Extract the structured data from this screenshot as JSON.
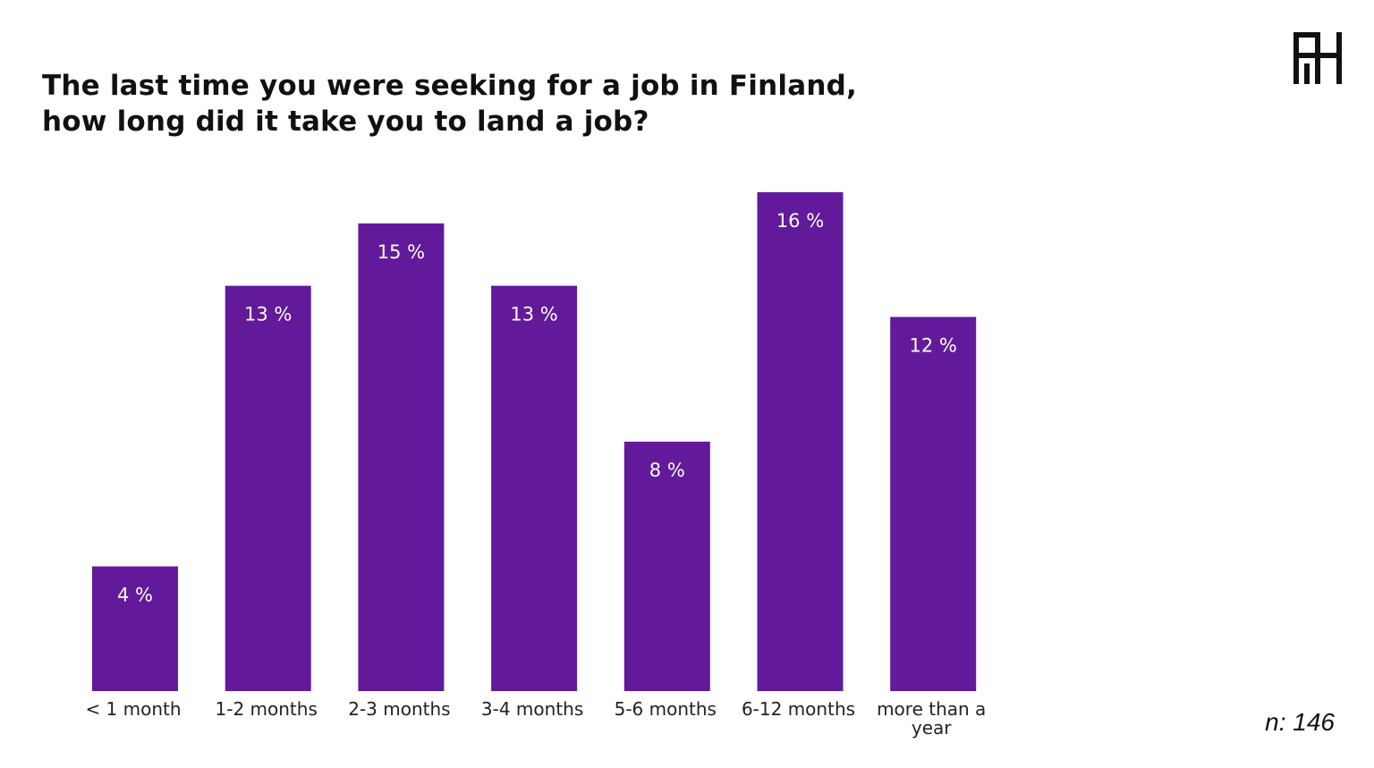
{
  "chart_data": {
    "type": "bar",
    "title_lines": [
      "The last time you were seeking for a job in Finland,",
      "how long did it take you to land a job?"
    ],
    "categories": [
      "< 1 month",
      "1-2 months",
      "2-3 months",
      "3-4 months",
      "5-6 months",
      "6-12 months",
      "more than a year"
    ],
    "category_lines": [
      [
        "< 1 month"
      ],
      [
        "1-2 months"
      ],
      [
        "2-3 months"
      ],
      [
        "3-4 months"
      ],
      [
        "5-6 months"
      ],
      [
        "6-12 months"
      ],
      [
        "more than a",
        "year"
      ]
    ],
    "values": [
      4,
      13,
      15,
      13,
      8,
      16,
      12
    ],
    "labels": [
      "4 %",
      "13 %",
      "15 %",
      "13 %",
      "8 %",
      "16 %",
      "12 %"
    ],
    "unit": "%",
    "ylim": [
      0,
      16
    ],
    "grid": false,
    "bar_color": "#621a9b"
  },
  "sample_note": "n: 146",
  "logo": {
    "icon": "brand-monogram-icon",
    "color": "#111111"
  }
}
